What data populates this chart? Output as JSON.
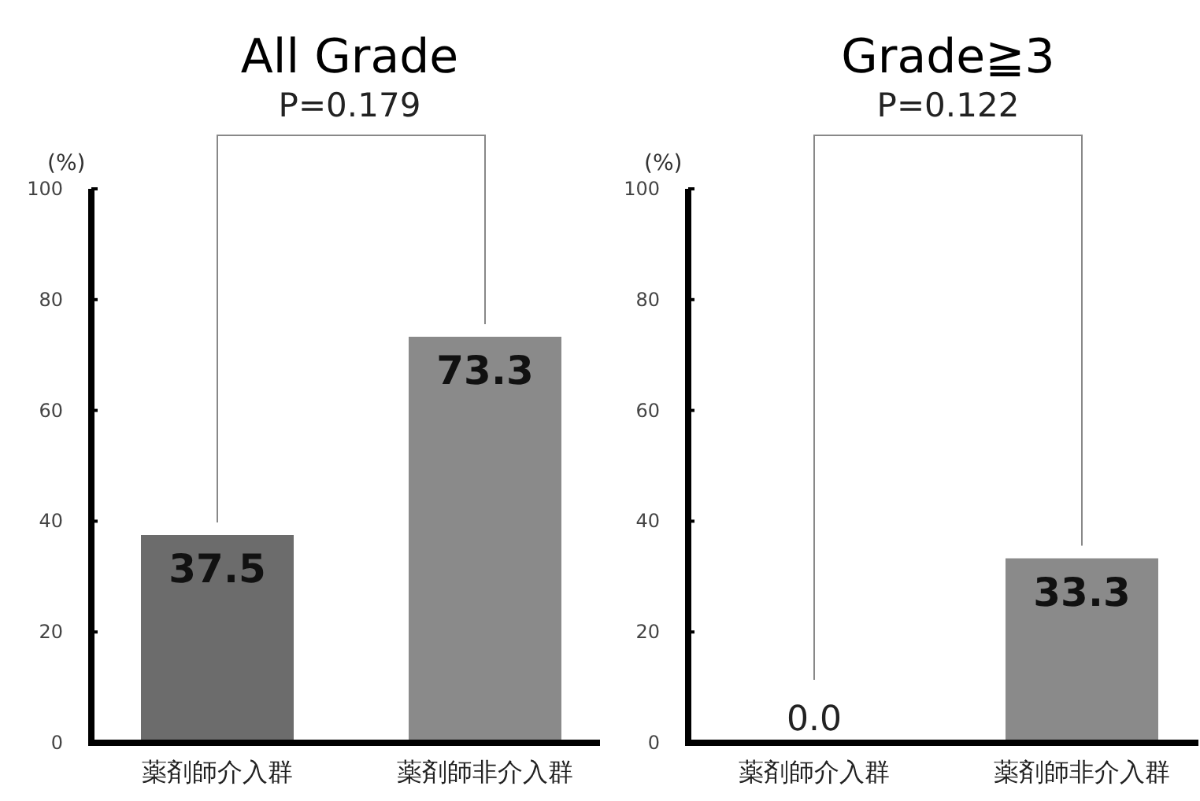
{
  "chart_data": [
    {
      "type": "bar",
      "title": "All Grade",
      "ylabel": "(%)",
      "annotations": [
        "P=0.179"
      ],
      "categories": [
        "薬剤師介入群",
        "薬剤師非介入群"
      ],
      "values": [
        37.5,
        73.3
      ],
      "colors": [
        "#6c6c6c",
        "#8a8a8a"
      ],
      "value_labels": [
        "37.5",
        "73.3"
      ],
      "ylim": [
        0,
        100
      ],
      "yticks": [
        0,
        20,
        40,
        60,
        80,
        100
      ]
    },
    {
      "type": "bar",
      "title": "Grade≧3",
      "ylabel": "(%)",
      "annotations": [
        "P=0.122"
      ],
      "categories": [
        "薬剤師介入群",
        "薬剤師非介入群"
      ],
      "values": [
        0.0,
        33.3
      ],
      "colors": [
        "#6c6c6c",
        "#8a8a8a"
      ],
      "value_labels": [
        "0.0",
        "33.3"
      ],
      "ylim": [
        0,
        100
      ],
      "yticks": [
        0,
        20,
        40,
        60,
        80,
        100
      ]
    }
  ]
}
